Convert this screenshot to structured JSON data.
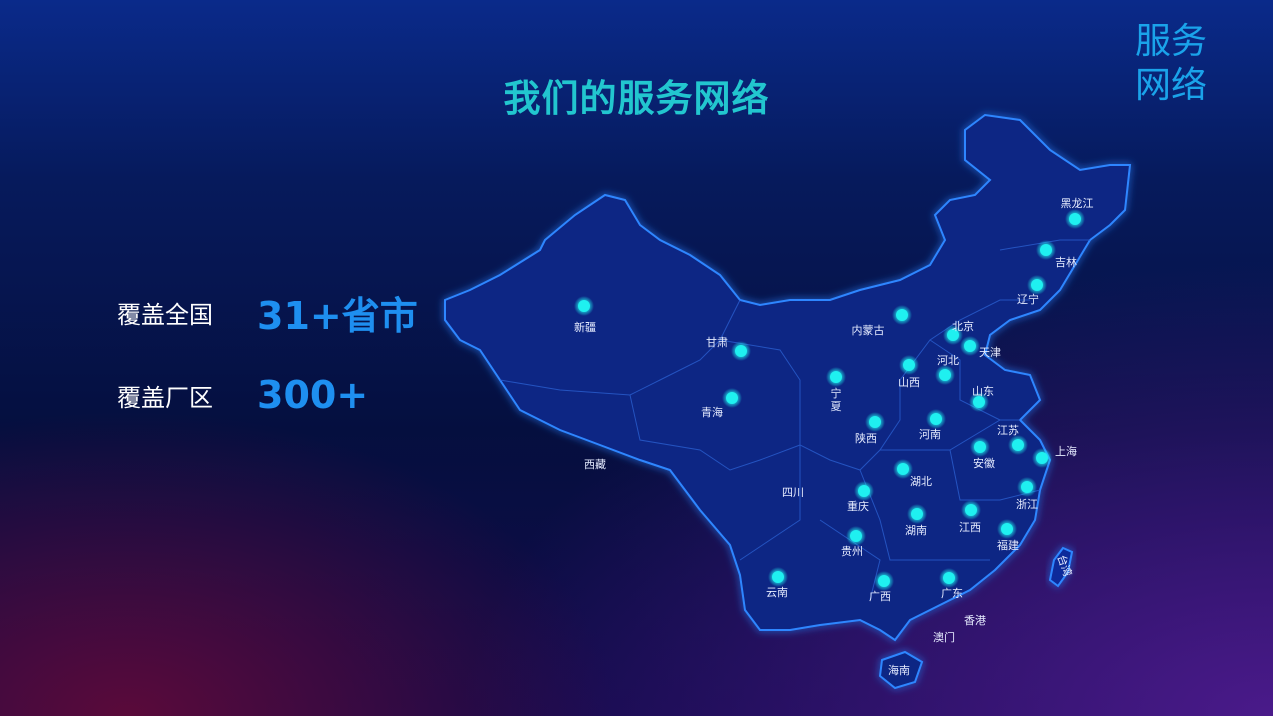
{
  "header": {
    "title": "我们的服务网络",
    "corner_label": "服务网络"
  },
  "stats": [
    {
      "label": "覆盖全国",
      "value": "31+省市"
    },
    {
      "label": "覆盖厂区",
      "value": "300+"
    }
  ],
  "map": {
    "colors": {
      "land": "#0b2a8c",
      "border": "#2a7bff",
      "dot": "#1ff0f0"
    },
    "regions": [
      {
        "name": "新疆",
        "dot": true
      },
      {
        "name": "甘肃",
        "dot": true
      },
      {
        "name": "青海",
        "dot": true
      },
      {
        "name": "西藏",
        "dot": false
      },
      {
        "name": "四川",
        "dot": false
      },
      {
        "name": "云南",
        "dot": true
      },
      {
        "name": "贵州",
        "dot": true
      },
      {
        "name": "广西",
        "dot": true
      },
      {
        "name": "广东",
        "dot": true
      },
      {
        "name": "海南",
        "dot": false
      },
      {
        "name": "香港",
        "dot": false
      },
      {
        "name": "澳门",
        "dot": false
      },
      {
        "name": "重庆",
        "dot": true
      },
      {
        "name": "湖南",
        "dot": true
      },
      {
        "name": "江西",
        "dot": true
      },
      {
        "name": "福建",
        "dot": true
      },
      {
        "name": "浙江",
        "dot": true
      },
      {
        "name": "上海",
        "dot": true
      },
      {
        "name": "江苏",
        "dot": true
      },
      {
        "name": "安徽",
        "dot": true
      },
      {
        "name": "湖北",
        "dot": true
      },
      {
        "name": "河南",
        "dot": true
      },
      {
        "name": "陕西",
        "dot": true
      },
      {
        "name": "宁夏",
        "dot": true
      },
      {
        "name": "山西",
        "dot": true
      },
      {
        "name": "内蒙古",
        "dot": true
      },
      {
        "name": "北京",
        "dot": true
      },
      {
        "name": "天津",
        "dot": true
      },
      {
        "name": "河北",
        "dot": true
      },
      {
        "name": "山东",
        "dot": true
      },
      {
        "name": "辽宁",
        "dot": true
      },
      {
        "name": "吉林",
        "dot": true
      },
      {
        "name": "黑龙江",
        "dot": true
      },
      {
        "name": "台湾",
        "dot": false
      }
    ]
  }
}
